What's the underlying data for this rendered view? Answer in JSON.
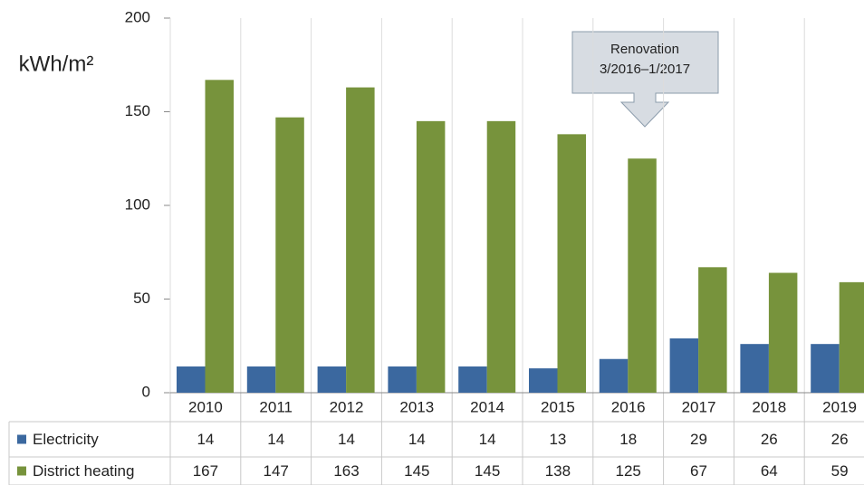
{
  "chart_data": {
    "type": "bar",
    "y_label": "kWh/m²",
    "categories": [
      "2010",
      "2011",
      "2012",
      "2013",
      "2014",
      "2015",
      "2016",
      "2017",
      "2018",
      "2019"
    ],
    "series": [
      {
        "name": "Electricity",
        "color": "#3b689f",
        "values": [
          14,
          14,
          14,
          14,
          14,
          13,
          18,
          29,
          26,
          26
        ]
      },
      {
        "name": "District heating",
        "color": "#77933c",
        "values": [
          167,
          147,
          163,
          145,
          145,
          138,
          125,
          67,
          64,
          59
        ]
      }
    ],
    "ylim": [
      0,
      200
    ],
    "yticks": [
      0,
      50,
      100,
      150,
      200
    ],
    "annotation": [
      "Renovation",
      "3/2016–1/2017"
    ],
    "grid": "vertical",
    "legend": "table"
  }
}
